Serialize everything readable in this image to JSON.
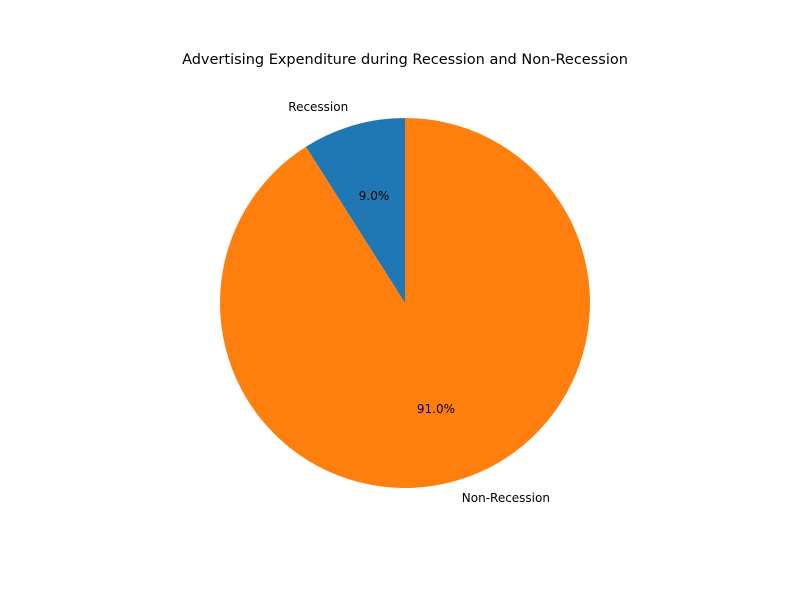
{
  "chart_data": {
    "type": "pie",
    "title": "Advertising Expenditure during Recession and Non-Recession",
    "slices": [
      {
        "label": "Recession",
        "value": 9.0,
        "pct_label": "9.0%",
        "color": "#1f77b4"
      },
      {
        "label": "Non-Recession",
        "value": 91.0,
        "pct_label": "91.0%",
        "color": "#ff7f0e"
      }
    ],
    "start_angle": "top",
    "direction": "counterclockwise",
    "legend": "none"
  }
}
